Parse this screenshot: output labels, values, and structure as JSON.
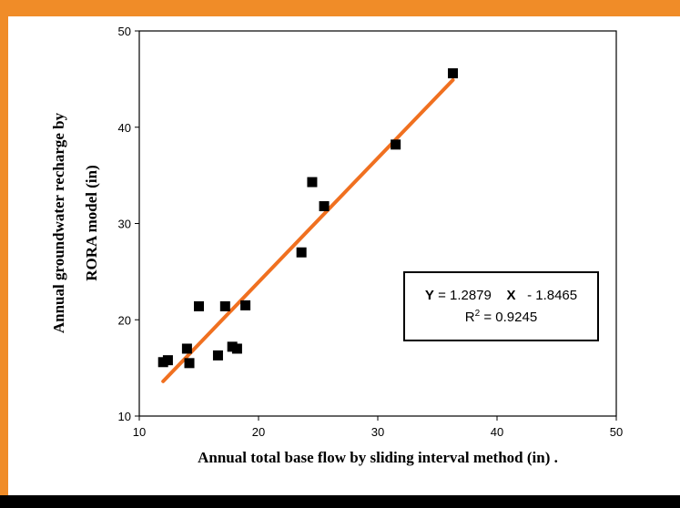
{
  "colors": {
    "frame_top": "#f08c28",
    "frame_bottom": "#000000",
    "trendline": "#f07020",
    "marker": "#000000"
  },
  "equation": {
    "y_label": "Y",
    "equals": "= 1.2879",
    "x_label": "X",
    "intercept": "-  1.8465",
    "r2_prefix": "R",
    "r2_exp": "2",
    "r2_value": "= 0.9245"
  },
  "chart_data": {
    "type": "scatter",
    "xlabel": "Annual total base flow by sliding interval method (in) .",
    "ylabel_lines": [
      "Annual groundwater recharge by",
      "RORA model (in)"
    ],
    "xlim": [
      10,
      50
    ],
    "ylim": [
      10,
      50
    ],
    "xticks": [
      10,
      20,
      30,
      40,
      50
    ],
    "yticks": [
      10,
      20,
      30,
      40,
      50
    ],
    "grid": false,
    "points": [
      {
        "x": 12.0,
        "y": 15.6
      },
      {
        "x": 12.4,
        "y": 15.8
      },
      {
        "x": 14.0,
        "y": 17.0
      },
      {
        "x": 14.2,
        "y": 15.5
      },
      {
        "x": 15.0,
        "y": 21.4
      },
      {
        "x": 16.6,
        "y": 16.3
      },
      {
        "x": 17.2,
        "y": 21.4
      },
      {
        "x": 17.8,
        "y": 17.2
      },
      {
        "x": 18.2,
        "y": 17.0
      },
      {
        "x": 18.9,
        "y": 21.5
      },
      {
        "x": 23.6,
        "y": 27.0
      },
      {
        "x": 24.5,
        "y": 34.3
      },
      {
        "x": 25.5,
        "y": 31.8
      },
      {
        "x": 31.5,
        "y": 38.2
      },
      {
        "x": 36.3,
        "y": 45.6
      }
    ],
    "trendline": {
      "slope": 1.2879,
      "intercept": -1.8465,
      "x_range": [
        12.0,
        36.3
      ]
    }
  }
}
